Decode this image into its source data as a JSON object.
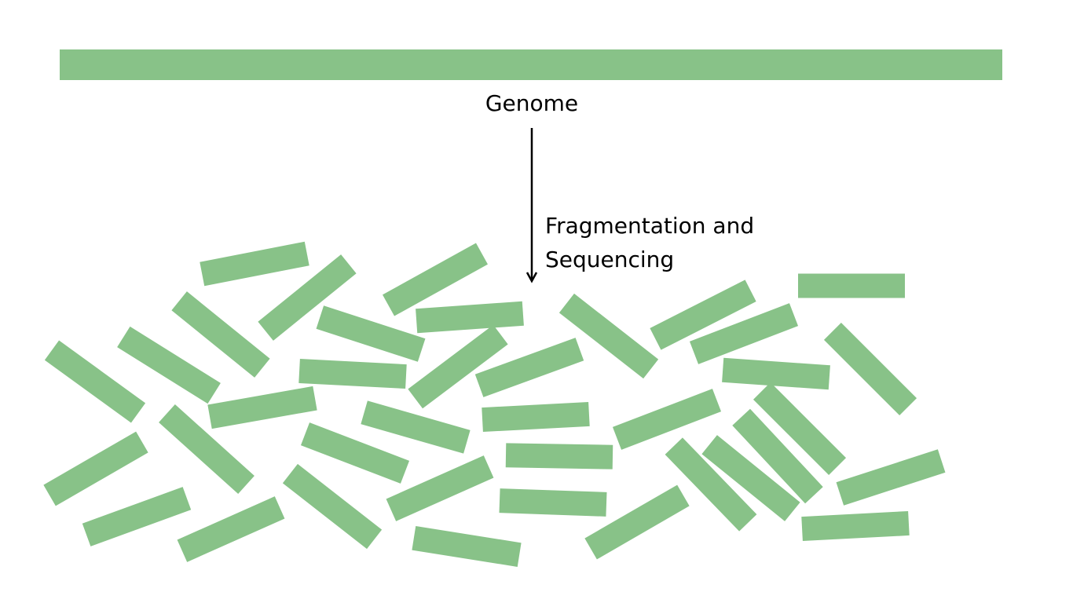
{
  "labels": {
    "genome": "Genome",
    "process_line1": "Fragmentation and",
    "process_line2": "Sequencing"
  },
  "colors": {
    "fragment": "#88c288",
    "text": "#000000",
    "arrow": "#000000"
  }
}
